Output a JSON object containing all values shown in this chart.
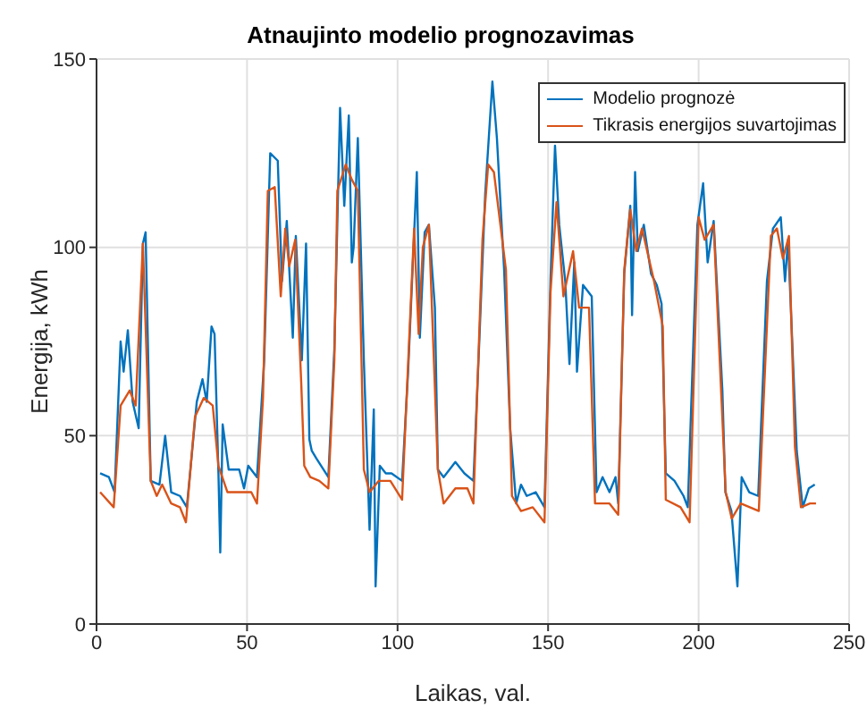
{
  "chart_data": {
    "type": "line",
    "title": "Atnaujinto modelio prognozavimas",
    "xlabel": "Laikas, val.",
    "ylabel": "Energija, kWh",
    "xlim": [
      0,
      250
    ],
    "xticks": [
      0,
      50,
      100,
      150,
      200,
      250
    ],
    "ylim": [
      0,
      150
    ],
    "yticks": [
      0,
      50,
      100,
      150
    ],
    "grid": true,
    "legend": "top right",
    "series": [
      {
        "name": "Modelio prognozė",
        "color": "#0072bd",
        "x": [
          1.2,
          4.1,
          6,
          8,
          9,
          10.4,
          12,
          14,
          15.4,
          16.3,
          18,
          20.9,
          22.8,
          24.8,
          27.7,
          30,
          33.3,
          35.2,
          36.6,
          38.2,
          39.2,
          40.5,
          41.1,
          41.9,
          43.9,
          47.4,
          49,
          50.4,
          53.3,
          55.7,
          57.7,
          60.2,
          61.6,
          63.2,
          65.2,
          66.2,
          68.2,
          69.6,
          70.7,
          71.5,
          73,
          77,
          79,
          80.9,
          82.3,
          83.8,
          84.8,
          85.4,
          86.8,
          88.8,
          90.7,
          92.1,
          92.7,
          94.1,
          96.1,
          98,
          101.5,
          103.5,
          106.4,
          107.4,
          109,
          110.4,
          112.4,
          113.4,
          115.3,
          119.2,
          122.2,
          125.2,
          127.2,
          129.1,
          131.5,
          133,
          135.4,
          137.4,
          139.4,
          141,
          142.9,
          145.9,
          148.8,
          150.8,
          152.3,
          153.7,
          155.7,
          157.1,
          158.7,
          159.6,
          161.6,
          164.5,
          166.1,
          168.1,
          170.4,
          172.4,
          173.3,
          175.3,
          177.3,
          177.9,
          178.9,
          179.8,
          181.8,
          184.2,
          186.1,
          187.7,
          189.1,
          192,
          195,
          196.4,
          199.6,
          201.5,
          203,
          205,
          207.9,
          208.9,
          210.9,
          212.9,
          214.3,
          216.8,
          219.8,
          222.7,
          224.7,
          227.3,
          228.7,
          229.7,
          232.6,
          234.6,
          236.6,
          238.6
        ],
        "values": [
          40,
          39,
          35,
          75,
          67,
          78,
          59,
          52,
          101,
          104,
          38,
          37,
          50,
          35,
          34,
          31,
          59,
          65,
          59,
          79,
          77,
          40,
          19,
          53,
          41,
          41,
          36,
          42,
          39,
          70,
          125,
          123,
          91,
          107,
          76,
          103,
          70,
          101,
          49,
          46,
          44,
          39,
          73,
          137,
          111,
          135,
          96,
          100,
          129,
          70,
          25,
          57,
          10,
          42,
          40,
          40,
          38,
          67,
          120,
          76,
          104,
          106,
          84,
          41,
          39,
          43,
          40,
          38,
          76,
          114,
          144,
          129,
          94,
          52,
          32,
          37,
          34,
          35,
          31,
          91,
          127,
          106,
          91,
          69,
          96,
          67,
          90,
          87,
          35,
          39,
          35,
          39,
          32,
          93,
          111,
          82,
          120,
          99,
          106,
          93,
          90,
          85,
          40,
          38,
          34,
          31,
          106,
          117,
          96,
          107,
          62,
          35,
          30,
          10,
          39,
          35,
          34,
          91,
          105,
          108,
          91,
          102,
          46,
          31,
          36,
          37
        ]
      },
      {
        "name": "Tikrasis energijos suvartojimas",
        "color": "#d95319",
        "x": [
          1.2,
          5.7,
          8,
          11,
          13,
          15.4,
          18,
          20,
          21.8,
          24.8,
          27.7,
          29.7,
          32.7,
          35.6,
          38.6,
          40.5,
          43.5,
          47.4,
          51.4,
          53.3,
          55.3,
          56.9,
          59.2,
          61.2,
          62.7,
          64,
          66,
          68,
          69,
          71,
          74,
          77,
          79,
          80,
          82.8,
          84.8,
          86.8,
          88.8,
          90.7,
          93.7,
          97.6,
          101.5,
          105.5,
          107,
          108.4,
          110.4,
          113.4,
          115.3,
          119.2,
          123.2,
          125.2,
          128.2,
          130.1,
          132,
          136,
          138,
          141,
          144.9,
          148.8,
          150.8,
          152.8,
          155.1,
          158.3,
          160.3,
          163.6,
          165.6,
          170.4,
          173.3,
          175.3,
          177.3,
          179.3,
          181.2,
          185.2,
          188.1,
          189.1,
          194,
          197,
          200,
          202,
          205,
          209,
          211,
          214,
          220,
          224,
          226,
          228,
          230,
          232,
          234,
          237,
          239
        ],
        "values": [
          35,
          31,
          58,
          62,
          58,
          101,
          38,
          34,
          37,
          32,
          31,
          27,
          55,
          60,
          58,
          42,
          35,
          35,
          35,
          32,
          60,
          115,
          116,
          87,
          105,
          95,
          102,
          64,
          42,
          39,
          38,
          36,
          70,
          115,
          122,
          118,
          115,
          41,
          35,
          38,
          38,
          33,
          105,
          77,
          100,
          106,
          41,
          32,
          36,
          36,
          32,
          102,
          122,
          120,
          94,
          34,
          30,
          31,
          27,
          88,
          112,
          87,
          99,
          84,
          84,
          32,
          32,
          29,
          94,
          110,
          99,
          105,
          91,
          79,
          33,
          31,
          27,
          108,
          102,
          106,
          35,
          28,
          32,
          30,
          103,
          105,
          97,
          103,
          47,
          31,
          32,
          32
        ]
      }
    ]
  }
}
